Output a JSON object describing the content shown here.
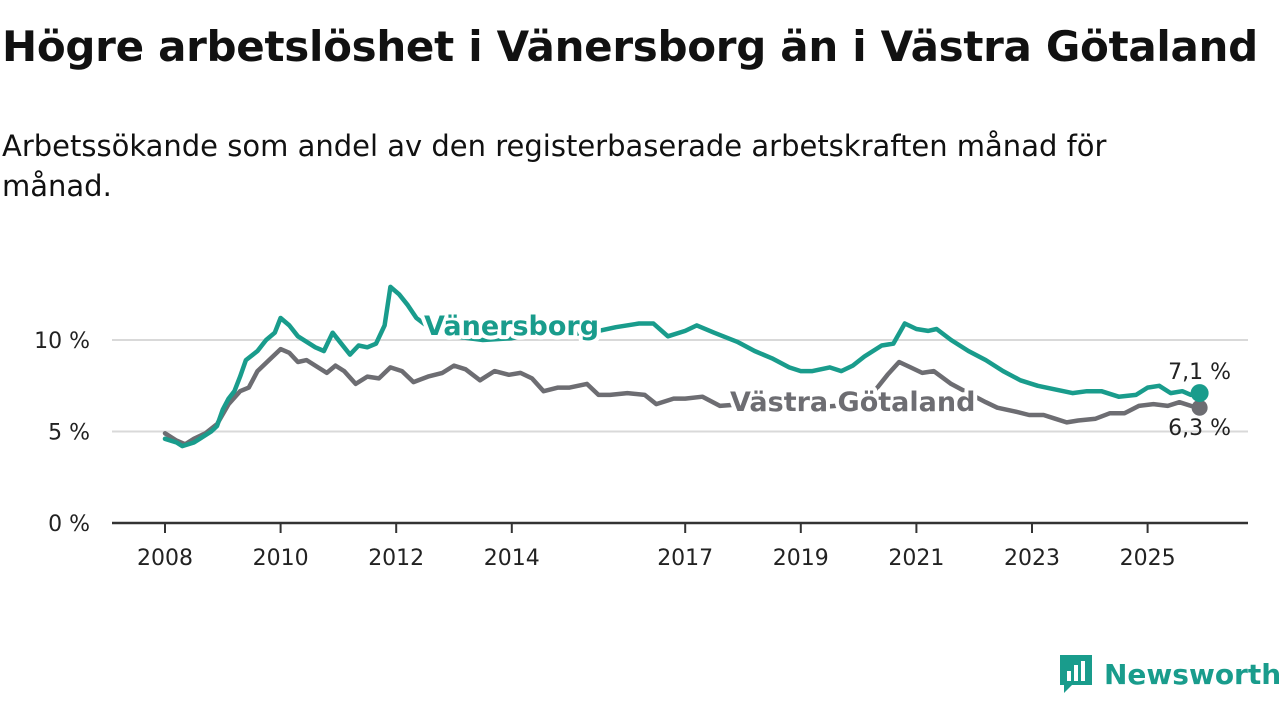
{
  "title": "Högre arbetslöshet i Vänersborg än i Västra Götaland",
  "subtitle": "Arbetssökande som andel av den registerbaserade arbetskraften månad för månad.",
  "brand": {
    "name": "Newsworthy"
  },
  "colors": {
    "vanersborg": "#199c8c",
    "vastra_gotaland": "#6d6d72",
    "grid": "#d9d9d9",
    "axis": "#333333",
    "brand": "#199c8c"
  },
  "chart_data": {
    "type": "line",
    "title": "Högre arbetslöshet i Vänersborg än i Västra Götaland",
    "subtitle": "Arbetssökande som andel av den registerbaserade arbetskraften månad för månad.",
    "xlabel": "",
    "ylabel": "",
    "xlim": [
      2008,
      2026.3
    ],
    "ylim": [
      0,
      12
    ],
    "grid": true,
    "yticks": [
      {
        "value": 0,
        "label": "0 %"
      },
      {
        "value": 5,
        "label": "5 %"
      },
      {
        "value": 10,
        "label": "10 %"
      }
    ],
    "xticks": [
      {
        "value": 2008,
        "label": "2008"
      },
      {
        "value": 2010,
        "label": "2010"
      },
      {
        "value": 2012,
        "label": "2012"
      },
      {
        "value": 2014,
        "label": "2014"
      },
      {
        "value": 2017,
        "label": "2017"
      },
      {
        "value": 2019,
        "label": "2019"
      },
      {
        "value": 2021,
        "label": "2021"
      },
      {
        "value": 2023,
        "label": "2023"
      },
      {
        "value": 2025,
        "label": "2025"
      }
    ],
    "series": [
      {
        "name": "Vänersborg",
        "label_position": "2012.4",
        "end_label": "7,1 %",
        "end_value": 7.1,
        "points": [
          [
            2008.0,
            4.6
          ],
          [
            2008.2,
            4.4
          ],
          [
            2008.3,
            4.2
          ],
          [
            2008.5,
            4.4
          ],
          [
            2008.6,
            4.6
          ],
          [
            2008.8,
            5.0
          ],
          [
            2008.9,
            5.3
          ],
          [
            2009.0,
            6.2
          ],
          [
            2009.1,
            6.8
          ],
          [
            2009.2,
            7.2
          ],
          [
            2009.3,
            8.0
          ],
          [
            2009.4,
            8.9
          ],
          [
            2009.6,
            9.4
          ],
          [
            2009.75,
            10.0
          ],
          [
            2009.9,
            10.4
          ],
          [
            2010.0,
            11.2
          ],
          [
            2010.15,
            10.8
          ],
          [
            2010.3,
            10.2
          ],
          [
            2010.45,
            9.9
          ],
          [
            2010.6,
            9.6
          ],
          [
            2010.75,
            9.4
          ],
          [
            2010.9,
            10.4
          ],
          [
            2011.05,
            9.8
          ],
          [
            2011.2,
            9.2
          ],
          [
            2011.35,
            9.7
          ],
          [
            2011.5,
            9.6
          ],
          [
            2011.65,
            9.8
          ],
          [
            2011.8,
            10.8
          ],
          [
            2011.9,
            12.9
          ],
          [
            2012.05,
            12.5
          ],
          [
            2012.2,
            11.9
          ],
          [
            2012.35,
            11.2
          ],
          [
            2012.6,
            10.6
          ],
          [
            2013.0,
            10.2
          ],
          [
            2013.5,
            10.0
          ],
          [
            2014.0,
            10.1
          ],
          [
            2014.5,
            10.4
          ],
          [
            2015.0,
            10.3
          ],
          [
            2015.5,
            10.5
          ],
          [
            2015.8,
            10.7
          ],
          [
            2016.2,
            10.9
          ],
          [
            2016.45,
            10.9
          ],
          [
            2016.7,
            10.2
          ],
          [
            2017.0,
            10.5
          ],
          [
            2017.2,
            10.8
          ],
          [
            2017.5,
            10.4
          ],
          [
            2017.9,
            9.9
          ],
          [
            2018.2,
            9.4
          ],
          [
            2018.5,
            9.0
          ],
          [
            2018.8,
            8.5
          ],
          [
            2019.0,
            8.3
          ],
          [
            2019.2,
            8.3
          ],
          [
            2019.5,
            8.5
          ],
          [
            2019.7,
            8.3
          ],
          [
            2019.9,
            8.6
          ],
          [
            2020.1,
            9.1
          ],
          [
            2020.4,
            9.7
          ],
          [
            2020.6,
            9.8
          ],
          [
            2020.8,
            10.9
          ],
          [
            2021.0,
            10.6
          ],
          [
            2021.2,
            10.5
          ],
          [
            2021.35,
            10.6
          ],
          [
            2021.6,
            10.0
          ],
          [
            2021.9,
            9.4
          ],
          [
            2022.2,
            8.9
          ],
          [
            2022.5,
            8.3
          ],
          [
            2022.8,
            7.8
          ],
          [
            2023.1,
            7.5
          ],
          [
            2023.4,
            7.3
          ],
          [
            2023.7,
            7.1
          ],
          [
            2023.95,
            7.2
          ],
          [
            2024.2,
            7.2
          ],
          [
            2024.5,
            6.9
          ],
          [
            2024.8,
            7.0
          ],
          [
            2025.0,
            7.4
          ],
          [
            2025.2,
            7.5
          ],
          [
            2025.4,
            7.1
          ],
          [
            2025.6,
            7.2
          ],
          [
            2025.75,
            7.0
          ],
          [
            2025.9,
            7.1
          ]
        ]
      },
      {
        "name": "Västra Götaland",
        "label_position": "2018.5",
        "end_label": "6,3 %",
        "end_value": 6.3,
        "points": [
          [
            2008.0,
            4.9
          ],
          [
            2008.2,
            4.5
          ],
          [
            2008.35,
            4.3
          ],
          [
            2008.5,
            4.6
          ],
          [
            2008.7,
            4.9
          ],
          [
            2008.9,
            5.4
          ],
          [
            2009.1,
            6.5
          ],
          [
            2009.3,
            7.2
          ],
          [
            2009.45,
            7.4
          ],
          [
            2009.6,
            8.3
          ],
          [
            2009.8,
            8.9
          ],
          [
            2010.0,
            9.5
          ],
          [
            2010.15,
            9.3
          ],
          [
            2010.3,
            8.8
          ],
          [
            2010.45,
            8.9
          ],
          [
            2010.6,
            8.6
          ],
          [
            2010.8,
            8.2
          ],
          [
            2010.95,
            8.6
          ],
          [
            2011.1,
            8.3
          ],
          [
            2011.3,
            7.6
          ],
          [
            2011.5,
            8.0
          ],
          [
            2011.7,
            7.9
          ],
          [
            2011.9,
            8.5
          ],
          [
            2012.1,
            8.3
          ],
          [
            2012.3,
            7.7
          ],
          [
            2012.55,
            8.0
          ],
          [
            2012.8,
            8.2
          ],
          [
            2013.0,
            8.6
          ],
          [
            2013.2,
            8.4
          ],
          [
            2013.45,
            7.8
          ],
          [
            2013.7,
            8.3
          ],
          [
            2013.95,
            8.1
          ],
          [
            2014.15,
            8.2
          ],
          [
            2014.35,
            7.9
          ],
          [
            2014.55,
            7.2
          ],
          [
            2014.8,
            7.4
          ],
          [
            2015.0,
            7.4
          ],
          [
            2015.3,
            7.6
          ],
          [
            2015.5,
            7.0
          ],
          [
            2015.7,
            7.0
          ],
          [
            2016.0,
            7.1
          ],
          [
            2016.3,
            7.0
          ],
          [
            2016.5,
            6.5
          ],
          [
            2016.8,
            6.8
          ],
          [
            2017.0,
            6.8
          ],
          [
            2017.3,
            6.9
          ],
          [
            2017.6,
            6.4
          ],
          [
            2018.0,
            6.5
          ],
          [
            2018.4,
            6.4
          ],
          [
            2018.8,
            6.3
          ],
          [
            2019.2,
            6.3
          ],
          [
            2019.6,
            6.4
          ],
          [
            2020.0,
            6.5
          ],
          [
            2020.3,
            7.3
          ],
          [
            2020.5,
            8.1
          ],
          [
            2020.7,
            8.8
          ],
          [
            2020.9,
            8.5
          ],
          [
            2021.1,
            8.2
          ],
          [
            2021.3,
            8.3
          ],
          [
            2021.6,
            7.6
          ],
          [
            2021.9,
            7.1
          ],
          [
            2022.2,
            6.6
          ],
          [
            2022.4,
            6.3
          ],
          [
            2022.7,
            6.1
          ],
          [
            2022.95,
            5.9
          ],
          [
            2023.2,
            5.9
          ],
          [
            2023.4,
            5.7
          ],
          [
            2023.6,
            5.5
          ],
          [
            2023.8,
            5.6
          ],
          [
            2024.1,
            5.7
          ],
          [
            2024.35,
            6.0
          ],
          [
            2024.6,
            6.0
          ],
          [
            2024.85,
            6.4
          ],
          [
            2025.1,
            6.5
          ],
          [
            2025.35,
            6.4
          ],
          [
            2025.55,
            6.6
          ],
          [
            2025.75,
            6.4
          ],
          [
            2025.9,
            6.3
          ]
        ]
      }
    ]
  }
}
